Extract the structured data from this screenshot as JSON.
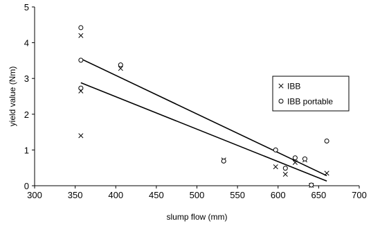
{
  "chart_data": {
    "type": "scatter",
    "title": "",
    "xlabel": "slump flow (mm)",
    "ylabel": "yield value (Nm)",
    "xlim": [
      300,
      700
    ],
    "ylim": [
      0,
      5
    ],
    "xticks": [
      "300",
      "350",
      "400",
      "450",
      "500",
      "550",
      "600",
      "650",
      "700"
    ],
    "yticks": [
      "0",
      "1",
      "2",
      "3",
      "4",
      "5"
    ],
    "grid": false,
    "legend_position": "right",
    "series": [
      {
        "name": "IBB",
        "marker": "x",
        "points": [
          [
            357,
            4.2
          ],
          [
            357,
            2.65
          ],
          [
            357,
            1.4
          ],
          [
            406,
            3.28
          ],
          [
            533,
            0.72
          ],
          [
            597,
            0.53
          ],
          [
            609,
            0.32
          ],
          [
            621,
            0.65
          ],
          [
            633,
            0.72
          ],
          [
            641,
            0.01
          ],
          [
            660,
            0.35
          ]
        ],
        "trendline": [
          [
            357,
            2.88
          ],
          [
            660,
            0.13
          ]
        ]
      },
      {
        "name": "IBB portable",
        "marker": "o",
        "points": [
          [
            357,
            4.42
          ],
          [
            357,
            3.51
          ],
          [
            357,
            2.73
          ],
          [
            406,
            3.38
          ],
          [
            533,
            0.69
          ],
          [
            597,
            1.0
          ],
          [
            609,
            0.49
          ],
          [
            621,
            0.78
          ],
          [
            633,
            0.75
          ],
          [
            641,
            0.02
          ],
          [
            660,
            1.25
          ]
        ],
        "trendline": [
          [
            357,
            3.55
          ],
          [
            660,
            0.28
          ]
        ]
      }
    ]
  }
}
